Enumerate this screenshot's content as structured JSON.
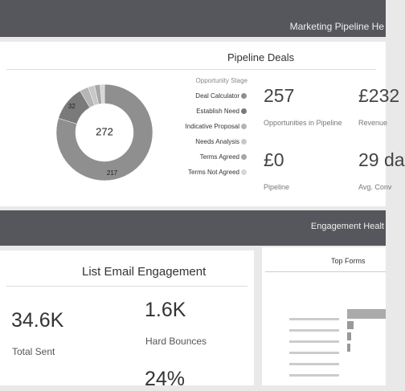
{
  "header": {
    "title": "Marketing Pipeline He"
  },
  "pipeline": {
    "title": "Pipeline Deals",
    "chart_data": {
      "type": "donut",
      "center_label": "272",
      "values": [
        217,
        32,
        8,
        6,
        5,
        4
      ],
      "colors": [
        "#8f8f8f",
        "#7a7a7a",
        "#b5b5b5",
        "#c8c8c8",
        "#a6a6a6",
        "#d6d6d6"
      ]
    },
    "legend": {
      "title": "Opportunity Stage",
      "items": [
        "Deal Calculator",
        "Establish Need",
        "Indicative Proposal",
        "Needs Analysis",
        "Terms Agreed",
        "Terms Not Agreed"
      ]
    },
    "stats": [
      {
        "value": "257",
        "label": "Opportunities in Pipeline"
      },
      {
        "value": "£232",
        "label": "Revenue"
      },
      {
        "value": "£0",
        "label": "Pipeline"
      },
      {
        "value": "29 da",
        "label": "Avg. Conv"
      }
    ]
  },
  "section": {
    "title": "Engagement Healt"
  },
  "email": {
    "title": "List Email Engagement",
    "stats": [
      {
        "value": "34.6K",
        "label": "Total Sent"
      },
      {
        "value": "1.6K",
        "label": "Hard Bounces"
      },
      {
        "value": "24%"
      }
    ]
  },
  "forms": {
    "title": "Top Forms"
  }
}
